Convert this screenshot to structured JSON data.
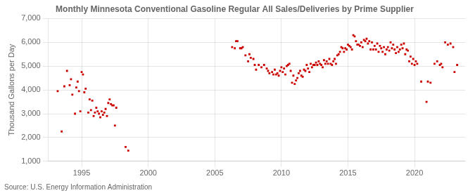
{
  "chart_data": {
    "type": "scatter",
    "title": "Monthly Minnesota Conventional Gasoline Regular All Sales/Deliveries by Prime Supplier",
    "y_label": "Thousand Gallons per Day",
    "annotations": [
      "Source: U.S. Energy Information Administration"
    ],
    "color": "#cc0000",
    "marker": "square",
    "grid": true,
    "xlim": [
      1992.5,
      2023.8
    ],
    "xticks": [
      1995,
      2000,
      2005,
      2010,
      2015,
      2020
    ],
    "ylim": [
      1000,
      7000
    ],
    "yticks": [
      {
        "value": 1000,
        "label": "1,000"
      },
      {
        "value": 2000,
        "label": "2,000"
      },
      {
        "value": 3000,
        "label": "3,000"
      },
      {
        "value": 4000,
        "label": "4,000"
      },
      {
        "value": 5000,
        "label": "5,000"
      },
      {
        "value": 6000,
        "label": "6,000"
      },
      {
        "value": 7000,
        "label": "7,000"
      }
    ],
    "x": [
      1993.2,
      1993.5,
      1993.7,
      1993.9,
      1994.1,
      1994.2,
      1994.3,
      1994.5,
      1994.6,
      1994.7,
      1994.8,
      1994.9,
      1995.0,
      1995.1,
      1995.2,
      1995.3,
      1995.5,
      1995.6,
      1995.7,
      1995.8,
      1995.9,
      1996.0,
      1996.1,
      1996.2,
      1996.3,
      1996.4,
      1996.5,
      1996.6,
      1996.7,
      1996.8,
      1996.9,
      1997.0,
      1997.1,
      1997.2,
      1997.3,
      1997.4,
      1997.5,
      1997.6,
      1998.3,
      1998.5,
      2006.3,
      2006.5,
      2006.6,
      2006.7,
      2006.9,
      2007.0,
      2007.1,
      2007.3,
      2007.5,
      2007.6,
      2007.7,
      2007.9,
      2008.0,
      2008.1,
      2008.3,
      2008.5,
      2008.7,
      2008.9,
      2009.0,
      2009.1,
      2009.3,
      2009.4,
      2009.5,
      2009.6,
      2009.7,
      2009.8,
      2009.9,
      2010.0,
      2010.1,
      2010.2,
      2010.3,
      2010.4,
      2010.5,
      2010.6,
      2010.7,
      2010.8,
      2010.9,
      2011.0,
      2011.1,
      2011.2,
      2011.3,
      2011.4,
      2011.5,
      2011.6,
      2011.7,
      2011.8,
      2011.9,
      2012.0,
      2012.1,
      2012.2,
      2012.3,
      2012.4,
      2012.5,
      2012.6,
      2012.7,
      2012.8,
      2012.9,
      2013.0,
      2013.1,
      2013.2,
      2013.3,
      2013.4,
      2013.5,
      2013.6,
      2013.7,
      2013.8,
      2013.9,
      2014.0,
      2014.1,
      2014.2,
      2014.3,
      2014.4,
      2014.5,
      2014.6,
      2014.7,
      2014.8,
      2014.9,
      2015.0,
      2015.1,
      2015.2,
      2015.3,
      2015.4,
      2015.5,
      2015.6,
      2015.7,
      2015.8,
      2015.9,
      2016.0,
      2016.1,
      2016.2,
      2016.3,
      2016.4,
      2016.5,
      2016.6,
      2016.7,
      2016.8,
      2016.9,
      2017.0,
      2017.1,
      2017.2,
      2017.3,
      2017.4,
      2017.5,
      2017.6,
      2017.7,
      2017.8,
      2017.9,
      2018.0,
      2018.1,
      2018.2,
      2018.3,
      2018.4,
      2018.5,
      2018.6,
      2018.7,
      2018.8,
      2018.9,
      2019.0,
      2019.1,
      2019.2,
      2019.3,
      2019.4,
      2019.5,
      2019.6,
      2019.7,
      2019.8,
      2019.9,
      2020.0,
      2020.1,
      2020.2,
      2020.5,
      2020.9,
      2021.0,
      2021.2,
      2021.5,
      2021.7,
      2021.9,
      2022.0,
      2022.1,
      2022.3,
      2022.5,
      2022.7,
      2022.9,
      2023.0,
      2023.2
    ],
    "values": [
      3950,
      2250,
      4150,
      4800,
      4200,
      4450,
      3800,
      3000,
      4100,
      4350,
      3950,
      3100,
      4750,
      4650,
      3900,
      4050,
      3050,
      3600,
      3150,
      3550,
      2900,
      3050,
      3250,
      3100,
      3000,
      2850,
      3100,
      2950,
      3050,
      3200,
      2900,
      3450,
      3600,
      3400,
      3350,
      3350,
      2500,
      3250,
      1600,
      1450,
      5800,
      5750,
      6050,
      6050,
      5750,
      5750,
      5800,
      5450,
      5200,
      5500,
      5350,
      5300,
      5050,
      4850,
      5050,
      4950,
      5050,
      4900,
      4800,
      4700,
      4750,
      4650,
      4850,
      4650,
      4700,
      4600,
      4800,
      4950,
      4750,
      4900,
      4650,
      5000,
      5050,
      5100,
      4800,
      4300,
      4600,
      4250,
      4400,
      4500,
      4700,
      4800,
      4600,
      4550,
      4850,
      4800,
      5050,
      4900,
      4750,
      5100,
      4950,
      5050,
      5050,
      5150,
      5050,
      5200,
      5100,
      5050,
      4950,
      5250,
      5100,
      5200,
      5100,
      5300,
      5100,
      5050,
      5200,
      5300,
      5100,
      5450,
      5500,
      5600,
      5800,
      5750,
      5600,
      5750,
      5700,
      5900,
      5850,
      5800,
      5700,
      6300,
      6250,
      6050,
      5900,
      5900,
      5850,
      6000,
      5800,
      6100,
      6050,
      6150,
      5950,
      6050,
      5700,
      6000,
      5700,
      5850,
      5700,
      5950,
      5600,
      5850,
      5750,
      5600,
      5800,
      5500,
      5700,
      5800,
      5650,
      6000,
      5750,
      5900,
      5700,
      5550,
      5800,
      5600,
      5700,
      5900,
      5750,
      5950,
      5500,
      5700,
      5650,
      5200,
      5400,
      5100,
      5300,
      5050,
      5200,
      5100,
      4350,
      3500,
      4350,
      4300,
      5100,
      5200,
      5050,
      5100,
      4950,
      6000,
      5900,
      5950,
      5800,
      4750,
      5050
    ]
  }
}
